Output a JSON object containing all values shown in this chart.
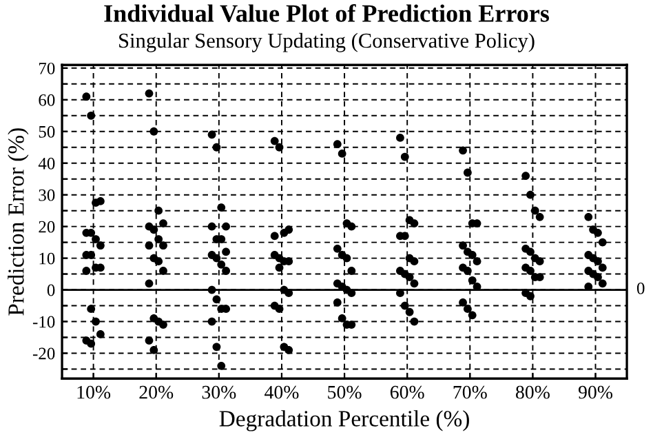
{
  "chart_data": {
    "type": "scatter",
    "title": "Individual Value Plot of Prediction Errors",
    "subtitle": "Singular Sensory Updating (Conservative Policy)",
    "xlabel": "Degradation Percentile (%)",
    "ylabel": "Prediction Error (%)",
    "categories": [
      "10%",
      "20%",
      "30%",
      "40%",
      "50%",
      "60%",
      "70%",
      "80%",
      "90%"
    ],
    "series": [
      {
        "color": "#000000",
        "x": [
          "10%",
          "10%",
          "10%",
          "10%",
          "10%",
          "10%",
          "10%",
          "10%",
          "10%",
          "10%",
          "10%",
          "10%",
          "10%",
          "10%",
          "10%",
          "10%",
          "10%",
          "10%"
        ],
        "values": [
          61,
          55,
          27.5,
          28,
          18,
          18,
          16,
          14,
          11,
          11,
          7,
          7,
          6,
          -6,
          -10,
          -14,
          -16,
          -17
        ]
      },
      {
        "color": "#000000",
        "x": [
          "20%",
          "20%",
          "20%",
          "20%",
          "20%",
          "20%",
          "20%",
          "20%",
          "20%",
          "20%",
          "20%",
          "20%",
          "20%",
          "20%",
          "20%",
          "20%",
          "20%",
          "20%"
        ],
        "values": [
          62,
          50,
          25,
          21,
          20,
          19,
          16,
          14,
          14,
          10,
          9,
          6,
          2,
          -9,
          -10,
          -11,
          -16,
          -19
        ]
      },
      {
        "color": "#000000",
        "x": [
          "30%",
          "30%",
          "30%",
          "30%",
          "30%",
          "30%",
          "30%",
          "30%",
          "30%",
          "30%",
          "30%",
          "30%",
          "30%",
          "30%",
          "30%",
          "30%",
          "30%",
          "30%",
          "30%"
        ],
        "values": [
          49,
          45,
          26,
          20,
          20,
          16,
          16,
          12,
          11,
          10,
          8,
          6,
          0,
          -3,
          -6,
          -6,
          -10,
          -18,
          -24
        ]
      },
      {
        "color": "#000000",
        "x": [
          "40%",
          "40%",
          "40%",
          "40%",
          "40%",
          "40%",
          "40%",
          "40%",
          "40%",
          "40%",
          "40%",
          "40%",
          "40%",
          "40%",
          "40%",
          "40%"
        ],
        "values": [
          47,
          45,
          18,
          19,
          17,
          10,
          9,
          9,
          11,
          7,
          0,
          -1,
          -5,
          -6,
          -18,
          -19
        ]
      },
      {
        "color": "#000000",
        "x": [
          "50%",
          "50%",
          "50%",
          "50%",
          "50%",
          "50%",
          "50%",
          "50%",
          "50%",
          "50%",
          "50%",
          "50%",
          "50%",
          "50%",
          "50%",
          "50%"
        ],
        "values": [
          46,
          43,
          21,
          20,
          13,
          11,
          10,
          6,
          2,
          1,
          0,
          -1,
          -4,
          -9,
          -11,
          -11
        ]
      },
      {
        "color": "#000000",
        "x": [
          "60%",
          "60%",
          "60%",
          "60%",
          "60%",
          "60%",
          "60%",
          "60%",
          "60%",
          "60%",
          "60%",
          "60%",
          "60%",
          "60%",
          "60%",
          "60%"
        ],
        "values": [
          48,
          42,
          22,
          21,
          17,
          17,
          10,
          9,
          6,
          5,
          4,
          2,
          -1,
          -5,
          -7,
          -10
        ]
      },
      {
        "color": "#000000",
        "x": [
          "70%",
          "70%",
          "70%",
          "70%",
          "70%",
          "70%",
          "70%",
          "70%",
          "70%",
          "70%",
          "70%",
          "70%",
          "70%",
          "70%",
          "70%"
        ],
        "values": [
          44,
          37,
          21,
          21,
          14,
          12,
          11,
          9,
          7,
          6,
          3,
          1,
          -4,
          -6,
          -8
        ]
      },
      {
        "color": "#000000",
        "x": [
          "80%",
          "80%",
          "80%",
          "80%",
          "80%",
          "80%",
          "80%",
          "80%",
          "80%",
          "80%",
          "80%",
          "80%",
          "80%",
          "80%"
        ],
        "values": [
          36,
          30,
          25,
          23,
          13,
          12,
          10,
          9,
          7,
          6,
          4,
          4,
          -1,
          -2
        ]
      },
      {
        "color": "#000000",
        "x": [
          "90%",
          "90%",
          "90%",
          "90%",
          "90%",
          "90%",
          "90%",
          "90%",
          "90%",
          "90%",
          "90%",
          "90%",
          "90%"
        ],
        "values": [
          23,
          19,
          18,
          15,
          11,
          10,
          9,
          7,
          6,
          5,
          4,
          2,
          1
        ]
      }
    ],
    "ylim": [
      -28,
      71
    ],
    "yticks": [
      {
        "value": -25,
        "label": null
      },
      -20,
      {
        "value": -15,
        "label": null
      },
      -10,
      {
        "value": -5,
        "label": null
      },
      0,
      {
        "value": 5,
        "label": null
      },
      10,
      {
        "value": 15,
        "label": null
      },
      20,
      {
        "value": 25,
        "label": null
      },
      30,
      {
        "value": 35,
        "label": null
      },
      40,
      {
        "value": 45,
        "label": null
      },
      50,
      {
        "value": 55,
        "label": null
      },
      60,
      {
        "value": 65,
        "label": null
      },
      70
    ],
    "ref_lines": [
      {
        "axis": "y",
        "value": 0,
        "label": "0",
        "color": "#000000",
        "line_style": "solid"
      }
    ],
    "grid": true,
    "legend": false,
    "marker": "circle"
  }
}
